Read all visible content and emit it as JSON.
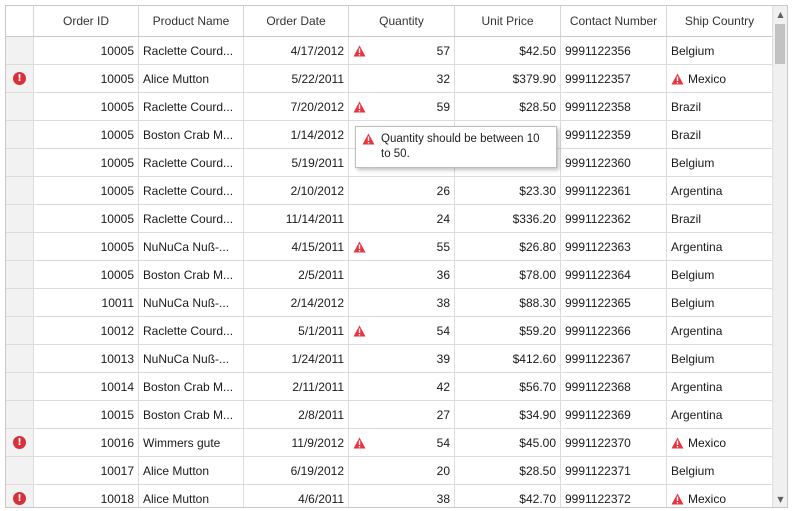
{
  "columns": [
    "Order ID",
    "Product Name",
    "Order Date",
    "Quantity",
    "Unit Price",
    "Contact Number",
    "Ship Country"
  ],
  "rows": [
    {
      "error": false,
      "order_id": "10005",
      "product": "Raclette  Courd...",
      "date": "4/17/2012",
      "qty_warn": true,
      "qty": "57",
      "price": "$42.50",
      "contact": "9991122356",
      "country_warn": false,
      "country": "Belgium"
    },
    {
      "error": true,
      "order_id": "10005",
      "product": "Alice Mutton",
      "date": "5/22/2011",
      "qty_warn": false,
      "qty": "32",
      "price": "$379.90",
      "contact": "9991122357",
      "country_warn": true,
      "country": "Mexico"
    },
    {
      "error": false,
      "order_id": "10005",
      "product": "Raclette  Courd...",
      "date": "7/20/2012",
      "qty_warn": true,
      "qty": "59",
      "price": "$28.50",
      "contact": "9991122358",
      "country_warn": false,
      "country": "Brazil"
    },
    {
      "error": false,
      "order_id": "10005",
      "product": "Boston  Crab  M...",
      "date": "1/14/2012",
      "qty_warn": false,
      "qty": "",
      "price": "",
      "contact": "9991122359",
      "country_warn": false,
      "country": "Brazil"
    },
    {
      "error": false,
      "order_id": "10005",
      "product": "Raclette  Courd...",
      "date": "5/19/2011",
      "qty_warn": false,
      "qty": "",
      "price": "",
      "contact": "9991122360",
      "country_warn": false,
      "country": "Belgium"
    },
    {
      "error": false,
      "order_id": "10005",
      "product": "Raclette  Courd...",
      "date": "2/10/2012",
      "qty_warn": false,
      "qty": "26",
      "price": "$23.30",
      "contact": "9991122361",
      "country_warn": false,
      "country": "Argentina"
    },
    {
      "error": false,
      "order_id": "10005",
      "product": "Raclette  Courd...",
      "date": "11/14/2011",
      "qty_warn": false,
      "qty": "24",
      "price": "$336.20",
      "contact": "9991122362",
      "country_warn": false,
      "country": "Brazil"
    },
    {
      "error": false,
      "order_id": "10005",
      "product": "NuNuCa  Nuß-...",
      "date": "4/15/2011",
      "qty_warn": true,
      "qty": "55",
      "price": "$26.80",
      "contact": "9991122363",
      "country_warn": false,
      "country": "Argentina"
    },
    {
      "error": false,
      "order_id": "10005",
      "product": "Boston  Crab  M...",
      "date": "2/5/2011",
      "qty_warn": false,
      "qty": "36",
      "price": "$78.00",
      "contact": "9991122364",
      "country_warn": false,
      "country": "Belgium"
    },
    {
      "error": false,
      "order_id": "10011",
      "product": "NuNuCa  Nuß-...",
      "date": "2/14/2012",
      "qty_warn": false,
      "qty": "38",
      "price": "$88.30",
      "contact": "9991122365",
      "country_warn": false,
      "country": "Belgium"
    },
    {
      "error": false,
      "order_id": "10012",
      "product": "Raclette  Courd...",
      "date": "5/1/2011",
      "qty_warn": true,
      "qty": "54",
      "price": "$59.20",
      "contact": "9991122366",
      "country_warn": false,
      "country": "Argentina"
    },
    {
      "error": false,
      "order_id": "10013",
      "product": "NuNuCa  Nuß-...",
      "date": "1/24/2011",
      "qty_warn": false,
      "qty": "39",
      "price": "$412.60",
      "contact": "9991122367",
      "country_warn": false,
      "country": "Belgium"
    },
    {
      "error": false,
      "order_id": "10014",
      "product": "Boston  Crab  M...",
      "date": "2/11/2011",
      "qty_warn": false,
      "qty": "42",
      "price": "$56.70",
      "contact": "9991122368",
      "country_warn": false,
      "country": "Argentina"
    },
    {
      "error": false,
      "order_id": "10015",
      "product": "Boston  Crab  M...",
      "date": "2/8/2011",
      "qty_warn": false,
      "qty": "27",
      "price": "$34.90",
      "contact": "9991122369",
      "country_warn": false,
      "country": "Argentina"
    },
    {
      "error": true,
      "order_id": "10016",
      "product": "Wimmers gute",
      "date": "11/9/2012",
      "qty_warn": true,
      "qty": "54",
      "price": "$45.00",
      "contact": "9991122370",
      "country_warn": true,
      "country": "Mexico"
    },
    {
      "error": false,
      "order_id": "10017",
      "product": "Alice Mutton",
      "date": "6/19/2012",
      "qty_warn": false,
      "qty": "20",
      "price": "$28.50",
      "contact": "9991122371",
      "country_warn": false,
      "country": "Belgium"
    },
    {
      "error": true,
      "order_id": "10018",
      "product": "Alice Mutton",
      "date": "4/6/2011",
      "qty_warn": false,
      "qty": "38",
      "price": "$42.70",
      "contact": "9991122372",
      "country_warn": true,
      "country": "Mexico"
    }
  ],
  "tooltip": {
    "text": "Quantity should be between 10 to 50."
  },
  "icons": {
    "warning": "warning-triangle-icon",
    "error": "error-circle-icon"
  },
  "colors": {
    "error": "#d9303c",
    "warning": "#e8343f",
    "grid_line": "#dcdcdc",
    "indicator_bg": "#f2f2f2"
  }
}
